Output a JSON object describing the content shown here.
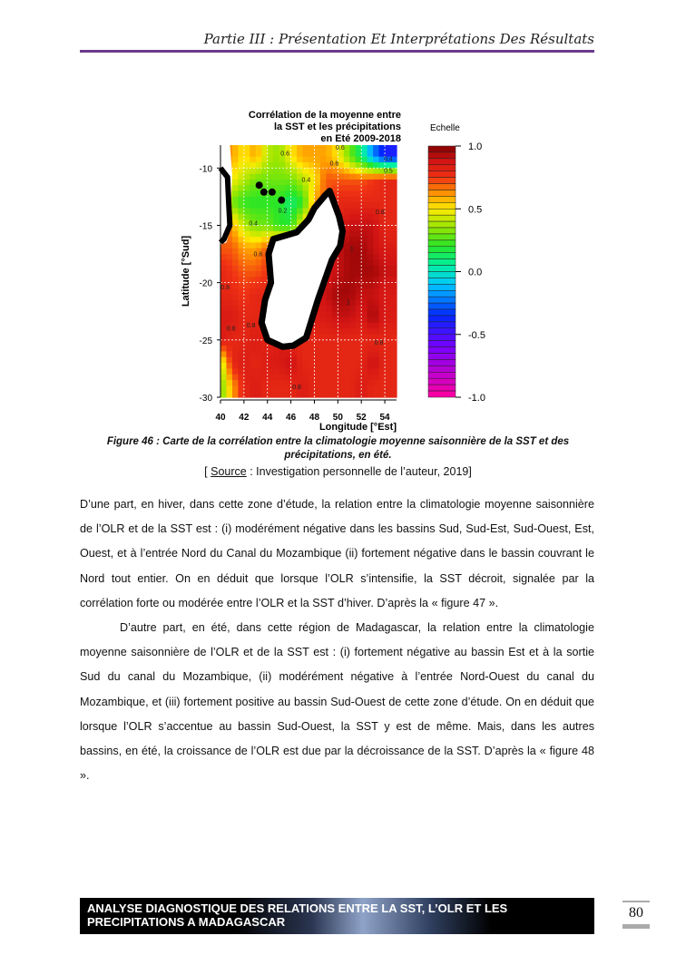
{
  "header": {
    "title": "Partie III : Présentation Et Interprétations Des Résultats"
  },
  "figure": {
    "caption": "Figure 46 : Carte de la corrélation entre la climatologie moyenne saisonnière de la SST et des précipitations, en été.",
    "source_label": "Source",
    "source_prefix": "[ ",
    "source_rest": " : Investigation personnelle de l’auteur, 2019]"
  },
  "chart_data": {
    "type": "heatmap",
    "title_lines": [
      "Corrélation de la moyenne entre",
      "la SST et les précipitations",
      "en Eté 2009-2018"
    ],
    "xlabel": "Longitude [°Est]",
    "ylabel": "Latitude [°Sud]",
    "xlim": [
      40,
      55
    ],
    "ylim": [
      -30,
      -8
    ],
    "xticks": [
      "40",
      "42",
      "44",
      "46",
      "48",
      "50",
      "52",
      "54"
    ],
    "yticks": [
      "-10",
      "-15",
      "-20",
      "-25",
      "-30"
    ],
    "grid": true,
    "colorbar": {
      "title": "Echelle",
      "range": [
        -1,
        1
      ],
      "ticks": [
        "1.0",
        "0.5",
        "0.0",
        "-0.5",
        "-1.0"
      ]
    },
    "lons": [
      40,
      41,
      42,
      43,
      44,
      45,
      46,
      47,
      48,
      49,
      50,
      51,
      52,
      53,
      54
    ],
    "lats": [
      -9,
      -11,
      -13,
      -15,
      -17,
      -19,
      -21,
      -23,
      -25,
      -27,
      -29
    ],
    "values": [
      [
        0.7,
        0.6,
        0.5,
        0.6,
        0.4,
        0.35,
        0.5,
        0.6,
        0.6,
        0.6,
        0.5,
        0.3,
        0.1,
        -0.2,
        -0.4
      ],
      [
        0.7,
        0.5,
        0.4,
        0.3,
        0.3,
        0.3,
        0.3,
        0.4,
        0.5,
        0.7,
        0.7,
        0.7,
        0.7,
        0.75,
        0.8
      ],
      [
        0.7,
        0.3,
        0.2,
        0.2,
        0.2,
        0.2,
        0.1,
        0.2,
        0.6,
        0.7,
        0.8,
        0.8,
        0.8,
        0.8,
        0.8
      ],
      [
        0.7,
        0.6,
        0.4,
        0.3,
        0.3,
        0.2,
        0.2,
        0.5,
        0.7,
        0.8,
        0.8,
        0.9,
        0.9,
        0.9,
        0.8
      ],
      [
        0.7,
        0.7,
        0.6,
        0.6,
        0.7,
        0.75,
        0.8,
        0.8,
        0.8,
        0.8,
        0.9,
        0.95,
        0.95,
        0.9,
        0.85
      ],
      [
        0.8,
        0.75,
        0.7,
        0.7,
        0.75,
        0.8,
        0.8,
        0.8,
        0.85,
        0.85,
        0.9,
        0.95,
        0.95,
        0.95,
        0.9
      ],
      [
        0.8,
        0.8,
        0.75,
        0.8,
        0.8,
        0.8,
        0.8,
        0.8,
        0.85,
        0.9,
        0.95,
        0.95,
        0.9,
        0.9,
        0.85
      ],
      [
        0.85,
        0.85,
        0.8,
        0.8,
        0.8,
        0.8,
        0.8,
        0.8,
        0.85,
        0.85,
        0.9,
        0.9,
        0.85,
        0.95,
        0.85
      ],
      [
        0.85,
        0.8,
        0.8,
        0.85,
        0.8,
        0.85,
        0.8,
        0.8,
        0.8,
        0.8,
        0.8,
        0.8,
        0.8,
        0.8,
        0.8
      ],
      [
        0.4,
        0.8,
        0.85,
        0.8,
        0.85,
        0.85,
        0.9,
        0.8,
        0.8,
        0.8,
        0.8,
        0.8,
        0.8,
        0.9,
        0.8
      ],
      [
        0.3,
        0.6,
        0.8,
        0.85,
        0.8,
        0.8,
        0.8,
        0.85,
        0.8,
        0.8,
        0.8,
        0.8,
        0.85,
        0.8,
        0.8
      ]
    ],
    "contour_labels": [
      {
        "text": "0.6",
        "lon": 45.5,
        "lat": -8.9
      },
      {
        "text": "0.6",
        "lon": 50.2,
        "lat": -8.4
      },
      {
        "text": "0.6",
        "lon": 49.7,
        "lat": -9.8
      },
      {
        "text": "0.4",
        "lon": 47.3,
        "lat": -11.2
      },
      {
        "text": "0.2",
        "lon": 45.3,
        "lat": -13.9
      },
      {
        "text": "0.4",
        "lon": 42.8,
        "lat": -15
      },
      {
        "text": "0.6",
        "lon": 43.2,
        "lat": -17.7
      },
      {
        "text": "0.8",
        "lon": 53.6,
        "lat": -14
      },
      {
        "text": "0.8",
        "lon": 40.4,
        "lat": -20.6
      },
      {
        "text": "0.8",
        "lon": 40.9,
        "lat": -24.2
      },
      {
        "text": "0.8",
        "lon": 42.6,
        "lat": -23.9
      },
      {
        "text": "0.8",
        "lon": 53.5,
        "lat": -25.4
      },
      {
        "text": "0.8",
        "lon": 46.5,
        "lat": -29.3
      },
      {
        "text": "1",
        "lon": 51.2,
        "lat": -17.2
      },
      {
        "text": "1",
        "lon": 50.9,
        "lat": -21.9
      },
      {
        "text": "0.4",
        "lon": 54.3,
        "lat": -9.4
      },
      {
        "text": "0.5",
        "lon": 54.3,
        "lat": -10.4
      }
    ]
  },
  "body": {
    "p1": "D’une part, en hiver, dans cette zone d’étude, la relation entre la climatologie moyenne saisonnière de l’OLR et de la SST est : (i) modérément négative dans les bassins Sud, Sud-Est, Sud-Ouest, Est, Ouest, et à l’entrée Nord du Canal du Mozambique (ii) fortement négative dans le bassin couvrant le Nord tout entier. On en déduit que lorsque l’OLR s’intensifie, la SST décroit, signalée par la corrélation forte ou modérée entre l’OLR et la SST d’hiver. D’après la « figure 47 ».",
    "p2": "D’autre part, en été, dans cette région de Madagascar, la relation entre la climatologie moyenne saisonnière de l’OLR et de la SST est : (i) fortement négative au bassin Est et à la sortie Sud du canal du Mozambique, (ii) modérément négative à l’entrée Nord-Ouest du canal du Mozambique, et (iii) fortement positive au bassin Sud-Ouest de cette zone d’étude. On en déduit que lorsque l’OLR s’accentue au bassin Sud-Ouest, la SST y est de même. Mais, dans les autres bassins, en été, la croissance de l’OLR est due par la décroissance de la SST. D’après la « figure 48 »."
  },
  "footer": {
    "banner_line1": "ANALYSE DIAGNOSTIQUE DES RELATIONS ENTRE LA SST, L’OLR ET LES",
    "banner_line2": "PRECIPITATIONS A MADAGASCAR",
    "page_number": "80"
  }
}
